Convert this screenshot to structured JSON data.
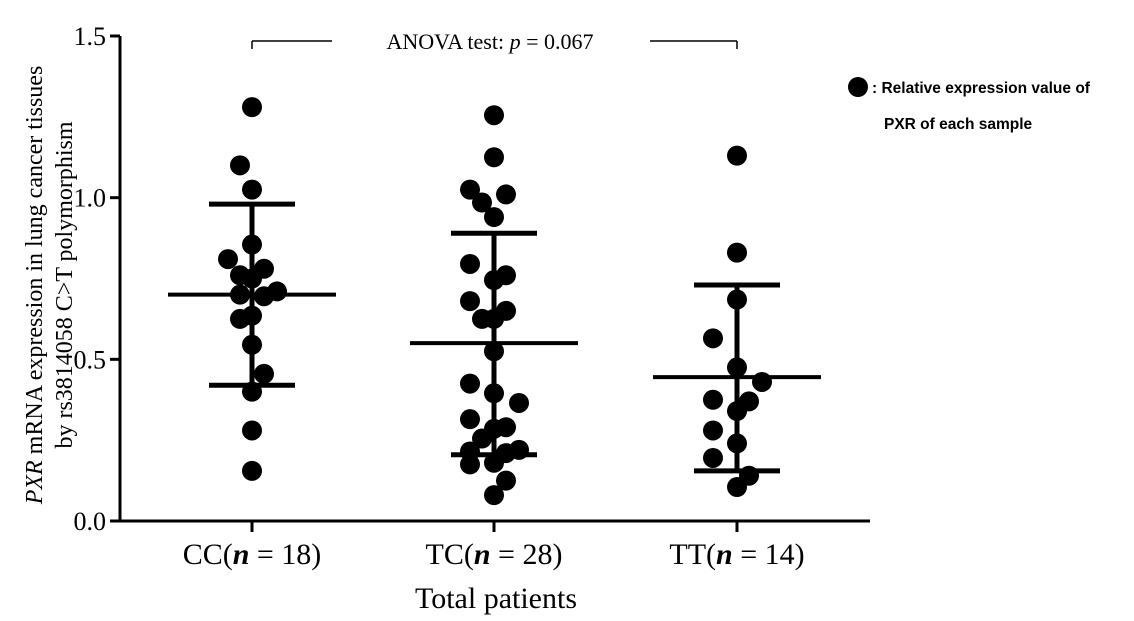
{
  "chart_data": {
    "type": "scatter",
    "ylabel_line1_italic": "PXR",
    "ylabel_line1_rest": " mRNA expression in lung cancer tissues",
    "ylabel_line2": "by rs3814058 C>T polymorphism",
    "xlabel": "Total patients",
    "ylim": [
      0.0,
      1.5
    ],
    "yticks": [
      "0.0",
      "0.5",
      "1.0",
      "1.5"
    ],
    "ytick_values": [
      0.0,
      0.5,
      1.0,
      1.5
    ],
    "groups": [
      {
        "prefix": "CC(",
        "n_symbol": "n",
        "suffix": " = 18)",
        "mean": 0.7,
        "sd_upper": 0.98,
        "sd_lower": 0.42,
        "points": [
          [
            0,
            1.28
          ],
          [
            -0.12,
            1.1
          ],
          [
            0,
            1.025
          ],
          [
            0,
            0.855
          ],
          [
            -0.24,
            0.81
          ],
          [
            -0.12,
            0.76
          ],
          [
            0,
            0.75
          ],
          [
            0.12,
            0.78
          ],
          [
            -0.12,
            0.7
          ],
          [
            0.12,
            0.695
          ],
          [
            0.25,
            0.71
          ],
          [
            -0.12,
            0.625
          ],
          [
            0,
            0.635
          ],
          [
            0,
            0.545
          ],
          [
            0.12,
            0.455
          ],
          [
            0,
            0.4
          ],
          [
            0,
            0.28
          ],
          [
            0,
            0.155
          ]
        ]
      },
      {
        "prefix": "TC(",
        "n_symbol": "n",
        "suffix": " = 28)",
        "mean": 0.55,
        "sd_upper": 0.89,
        "sd_lower": 0.205,
        "points": [
          [
            0,
            1.255
          ],
          [
            0,
            1.125
          ],
          [
            -0.24,
            1.025
          ],
          [
            0.12,
            1.01
          ],
          [
            -0.12,
            0.985
          ],
          [
            0,
            0.94
          ],
          [
            -0.24,
            0.68
          ],
          [
            -0.24,
            0.795
          ],
          [
            0,
            0.745
          ],
          [
            0.12,
            0.76
          ],
          [
            -0.12,
            0.625
          ],
          [
            0,
            0.625
          ],
          [
            0.12,
            0.65
          ],
          [
            0,
            0.525
          ],
          [
            -0.24,
            0.425
          ],
          [
            0,
            0.395
          ],
          [
            0.25,
            0.365
          ],
          [
            -0.24,
            0.315
          ],
          [
            0.12,
            0.29
          ],
          [
            0,
            0.285
          ],
          [
            -0.12,
            0.255
          ],
          [
            -0.24,
            0.215
          ],
          [
            0.25,
            0.22
          ],
          [
            0.12,
            0.21
          ],
          [
            -0.24,
            0.175
          ],
          [
            0,
            0.18
          ],
          [
            0.12,
            0.125
          ],
          [
            0,
            0.08
          ]
        ]
      },
      {
        "prefix": "TT(",
        "n_symbol": "n",
        "suffix": " = 14)",
        "mean": 0.445,
        "sd_upper": 0.73,
        "sd_lower": 0.155,
        "points": [
          [
            0,
            1.13
          ],
          [
            0,
            0.83
          ],
          [
            0,
            0.685
          ],
          [
            -0.24,
            0.565
          ],
          [
            0,
            0.475
          ],
          [
            0.25,
            0.43
          ],
          [
            -0.24,
            0.375
          ],
          [
            0,
            0.34
          ],
          [
            0.12,
            0.37
          ],
          [
            -0.24,
            0.28
          ],
          [
            0,
            0.24
          ],
          [
            -0.24,
            0.195
          ],
          [
            0.12,
            0.14
          ],
          [
            0,
            0.105
          ]
        ]
      }
    ],
    "annotation": {
      "prefix": "ANOVA test: ",
      "p_symbol": "p",
      "suffix": " = 0.067"
    },
    "legend": {
      "position": "top-right",
      "line1": ": Relative expression value of",
      "line2": "PXR of each sample"
    },
    "grid": false
  }
}
